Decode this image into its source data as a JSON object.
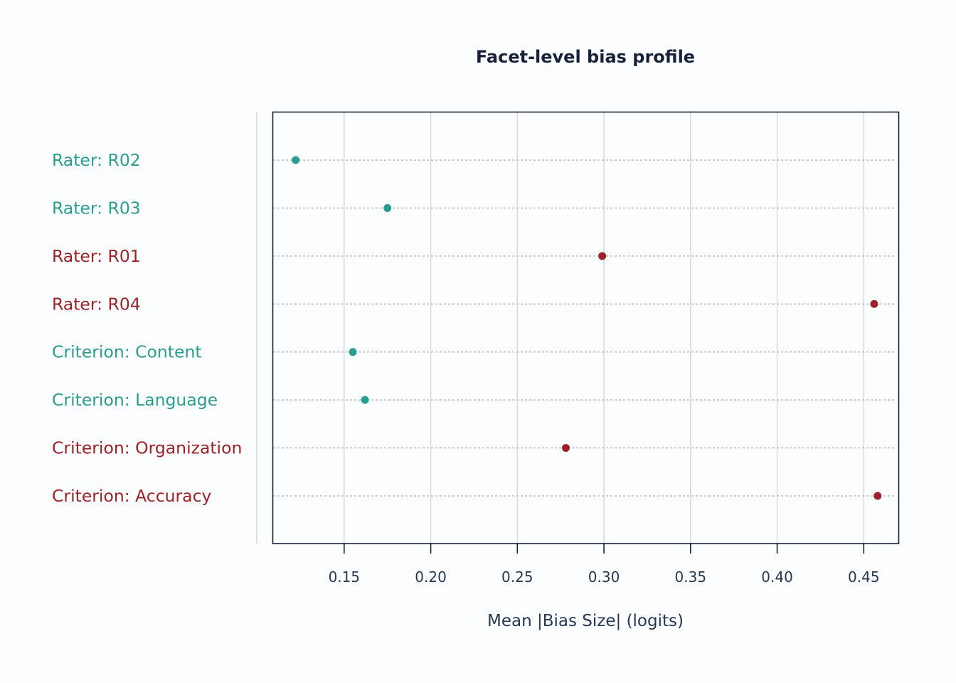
{
  "chart_data": {
    "type": "scatter",
    "title": "Facet-level bias profile",
    "xlabel": "Mean |Bias Size| (logits)",
    "ylabel": "",
    "xlim": [
      0.109,
      0.47
    ],
    "xticks": [
      0.15,
      0.2,
      0.25,
      0.3,
      0.35,
      0.4,
      0.45
    ],
    "xtick_labels": [
      "0.15",
      "0.20",
      "0.25",
      "0.30",
      "0.35",
      "0.40",
      "0.45"
    ],
    "grid": "vertical major gridlines",
    "colors": {
      "low": "#2a9d8f",
      "high": "#9b2226"
    },
    "points": [
      {
        "label": "Rater: R02",
        "value": 0.122,
        "group": "low"
      },
      {
        "label": "Rater: R03",
        "value": 0.175,
        "group": "low"
      },
      {
        "label": "Rater: R01",
        "value": 0.299,
        "group": "high"
      },
      {
        "label": "Rater: R04",
        "value": 0.456,
        "group": "high"
      },
      {
        "label": "Criterion: Content",
        "value": 0.155,
        "group": "low"
      },
      {
        "label": "Criterion: Language",
        "value": 0.162,
        "group": "low"
      },
      {
        "label": "Criterion: Organization",
        "value": 0.278,
        "group": "high"
      },
      {
        "label": "Criterion: Accuracy",
        "value": 0.458,
        "group": "high"
      }
    ]
  }
}
